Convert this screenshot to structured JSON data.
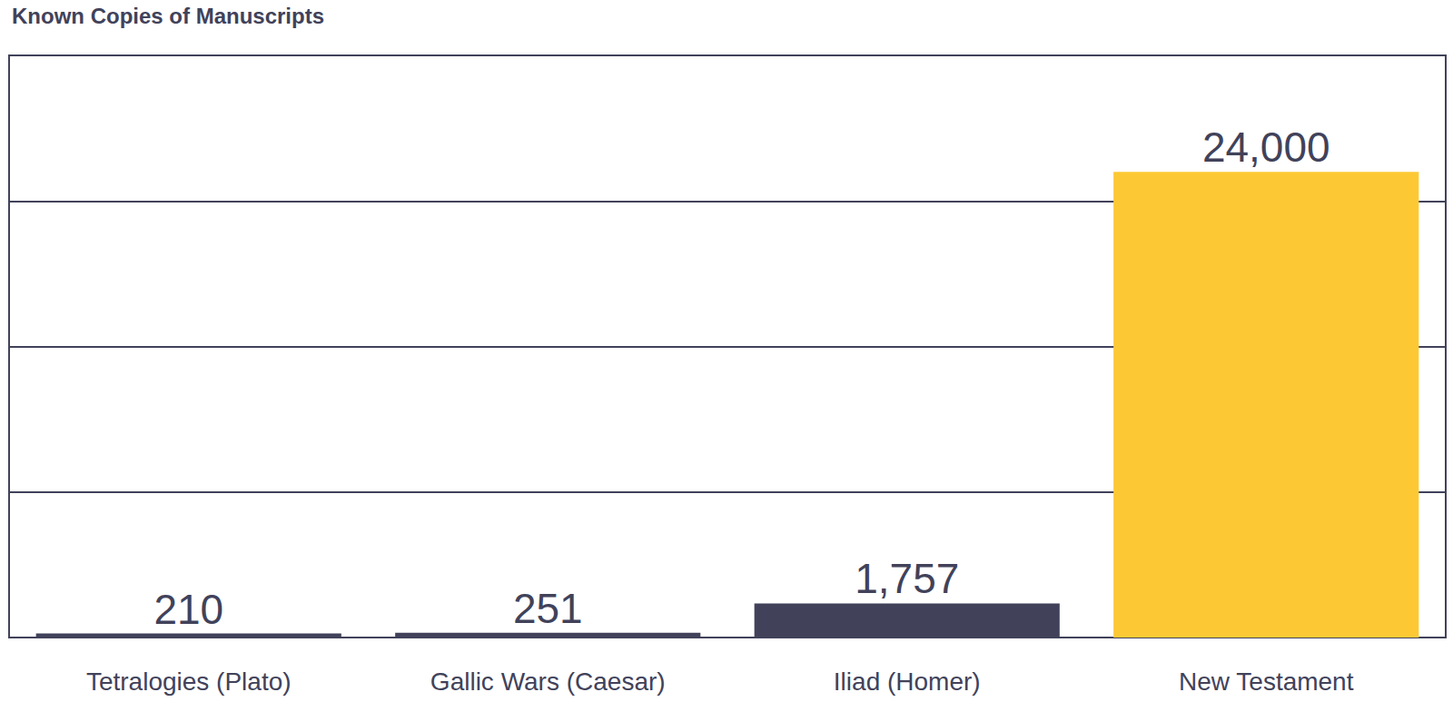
{
  "chart_data": {
    "type": "bar",
    "title": "Known Copies of Manuscripts",
    "categories": [
      "Tetralogies (Plato)",
      "Gallic Wars (Caesar)",
      "Iliad (Homer)",
      "New Testament"
    ],
    "values": [
      210,
      251,
      1757,
      24000
    ],
    "value_labels": [
      "210",
      "251",
      "1,757",
      "24,000"
    ],
    "colors": [
      "#41425a",
      "#41425a",
      "#41425a",
      "#fcc934"
    ],
    "ylim": [
      0,
      30000
    ],
    "yticks": [
      0,
      7500,
      15000,
      22500,
      30000
    ],
    "grid": true,
    "data_labels": true,
    "tick_labels": "x"
  }
}
